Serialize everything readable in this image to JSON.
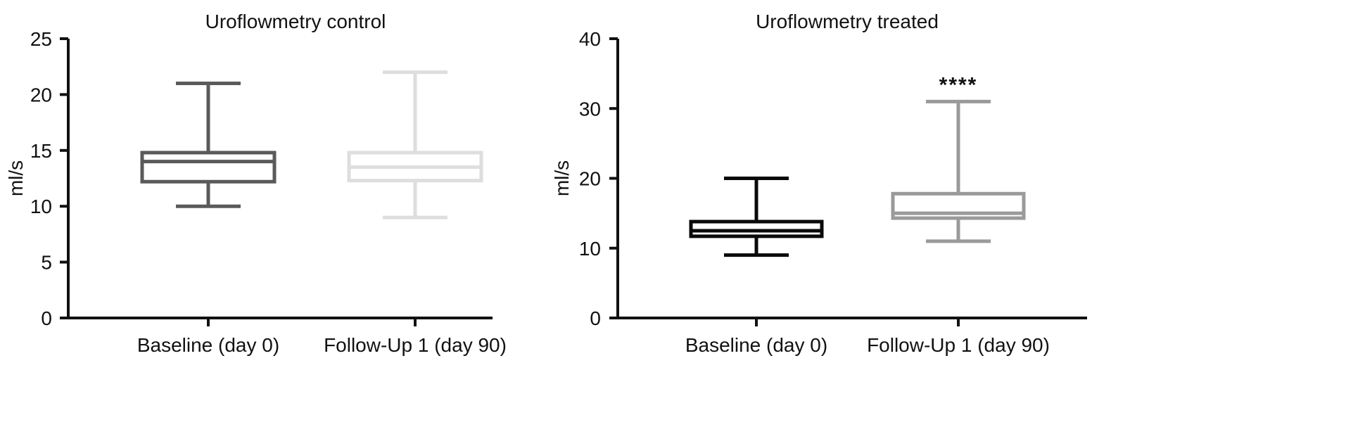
{
  "chart_data": [
    {
      "type": "box",
      "title": "Uroflowmetry control",
      "xlabel": "",
      "ylabel": "ml/s",
      "ylim": [
        0,
        25
      ],
      "yticks": [
        0,
        5,
        10,
        15,
        20,
        25
      ],
      "grid": false,
      "categories": [
        "Baseline (day 0)",
        "Follow-Up 1 (day 90)"
      ],
      "boxes": [
        {
          "min": 10,
          "q1": 12.2,
          "median": 14,
          "q3": 14.8,
          "max": 21,
          "color": "#5a5a5a"
        },
        {
          "min": 9,
          "q1": 12.3,
          "median": 13.5,
          "q3": 14.8,
          "max": 22,
          "color": "#dedede"
        }
      ],
      "annotations": []
    },
    {
      "type": "box",
      "title": "Uroflowmetry treated",
      "xlabel": "",
      "ylabel": "ml/s",
      "ylim": [
        0,
        40
      ],
      "yticks": [
        0,
        10,
        20,
        30,
        40
      ],
      "grid": false,
      "categories": [
        "Baseline (day 0)",
        "Follow-Up 1 (day 90)"
      ],
      "boxes": [
        {
          "min": 9,
          "q1": 11.7,
          "median": 12.5,
          "q3": 13.8,
          "max": 20,
          "color": "#0a0a0a"
        },
        {
          "min": 11,
          "q1": 14.3,
          "median": 15,
          "q3": 17.8,
          "max": 31,
          "color": "#9a9a9a"
        }
      ],
      "annotations": [
        {
          "category_index": 1,
          "text": "****"
        }
      ]
    }
  ]
}
